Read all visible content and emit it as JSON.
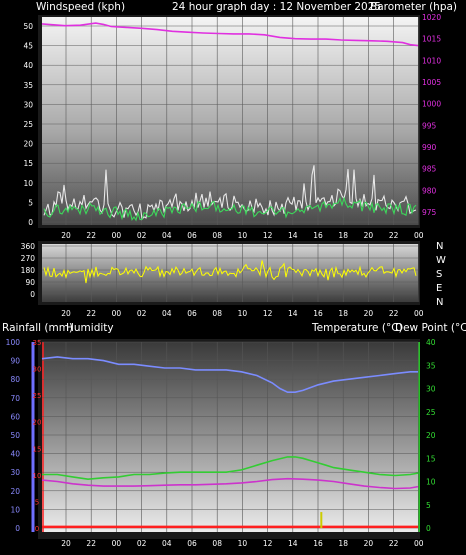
{
  "header": {
    "left": "Windspeed (kph)",
    "center": "24 hour graph day : 12 November 2025",
    "right": "Barometer (hpa)"
  },
  "middle_header": {
    "left": "Rainfall (mm)",
    "left2": "Humidity",
    "right": "Temperature (°C)",
    "right2": "Dew Point (°C)"
  },
  "colors": {
    "background": "#000000",
    "wind_speed": "#e8e8e8",
    "wind_gust": "#3cd85a",
    "barometer": "#e030e0",
    "direction": "#ffff00",
    "humidity": "#7b8cff",
    "temperature": "#33cc33",
    "dew_point": "#cc33cc",
    "rain": "#ff2020",
    "rain_rate": "#cccc00"
  },
  "chart_data": [
    {
      "type": "line",
      "name": "wind_barometer",
      "x_ticks": [
        "20",
        "22",
        "00",
        "02",
        "04",
        "06",
        "08",
        "10",
        "12",
        "14",
        "16",
        "18",
        "20",
        "22",
        "00"
      ],
      "xlim_hours": [
        18.5,
        43
      ],
      "left_axis": {
        "label": "Windspeed (kph)",
        "ylim": [
          0,
          50
        ],
        "ticks": [
          0,
          5,
          10,
          15,
          20,
          25,
          30,
          35,
          40,
          45,
          50
        ]
      },
      "right_axis": {
        "label": "Barometer (hpa)",
        "ylim": [
          972,
          1020
        ],
        "ticks": [
          975,
          980,
          985,
          990,
          995,
          1000,
          1005,
          1010,
          1015,
          1020
        ]
      },
      "series": [
        {
          "key": "barometer",
          "axis": "right",
          "x": [
            18.5,
            20,
            21,
            22,
            22.5,
            23,
            24,
            25,
            26,
            27,
            28,
            29,
            30,
            31,
            32,
            33,
            34,
            35,
            36,
            37,
            38,
            39,
            40,
            41,
            42,
            42.5,
            43
          ],
          "y": [
            1018.4,
            1018.0,
            1018.1,
            1018.6,
            1018.3,
            1017.8,
            1017.6,
            1017.4,
            1017.1,
            1016.7,
            1016.5,
            1016.3,
            1016.2,
            1016.1,
            1016.1,
            1015.9,
            1015.3,
            1015.0,
            1014.9,
            1014.9,
            1014.7,
            1014.6,
            1014.5,
            1014.4,
            1014.1,
            1013.6,
            1013.4
          ]
        }
      ]
    },
    {
      "type": "line",
      "name": "wind_direction",
      "x_ticks": [
        "20",
        "22",
        "00",
        "02",
        "04",
        "06",
        "08",
        "10",
        "12",
        "14",
        "16",
        "18",
        "20",
        "22",
        "00"
      ],
      "left_axis": {
        "ylim": [
          0,
          360
        ],
        "ticks": [
          0,
          90,
          180,
          270,
          360
        ]
      },
      "right_labels": [
        "N",
        "W",
        "S",
        "E",
        "N"
      ]
    },
    {
      "type": "line",
      "name": "temp_humidity_rain",
      "x_ticks": [
        "20",
        "22",
        "00",
        "02",
        "04",
        "06",
        "08",
        "10",
        "12",
        "14",
        "16",
        "18",
        "20",
        "22",
        "00"
      ],
      "xlim_hours": [
        18.5,
        43
      ],
      "humidity_axis": {
        "label": "Humidity",
        "ylim": [
          0,
          100
        ],
        "ticks": [
          0,
          10,
          20,
          30,
          40,
          50,
          60,
          70,
          80,
          90,
          100
        ]
      },
      "rain_axis": {
        "label": "Rainfall (mm)",
        "ylim": [
          0,
          35
        ],
        "ticks": [
          0,
          5,
          10,
          15,
          20,
          25,
          30,
          35
        ]
      },
      "temp_axis": {
        "label": "Temperature (°C)",
        "ylim": [
          0,
          40
        ],
        "ticks": [
          0,
          5,
          10,
          15,
          20,
          25,
          30,
          35,
          40
        ]
      },
      "series": [
        {
          "key": "humidity",
          "axis": "humidity",
          "x": [
            18.5,
            19.5,
            20.5,
            21.5,
            22.5,
            23.5,
            24.5,
            25.5,
            26.5,
            27.5,
            28.5,
            29.5,
            30.5,
            31.5,
            32.5,
            33,
            33.5,
            34,
            34.5,
            35,
            35.5,
            36.5,
            37.5,
            38.5,
            39.5,
            40.5,
            41.5,
            42.5,
            43
          ],
          "y": [
            91,
            92,
            91,
            91,
            90,
            88,
            88,
            87,
            86,
            86,
            85,
            85,
            85,
            84,
            82,
            80,
            78,
            75,
            73,
            73,
            74,
            77,
            79,
            80,
            81,
            82,
            83,
            84,
            84
          ]
        },
        {
          "key": "temperature",
          "axis": "temp",
          "x": [
            18.5,
            19.5,
            20.5,
            21.5,
            22.5,
            23.5,
            24.5,
            25.5,
            26.5,
            27.5,
            28.5,
            29.5,
            30.5,
            31.5,
            32.5,
            33.5,
            34.5,
            35,
            35.5,
            36,
            36.5,
            37,
            37.5,
            38.5,
            39.5,
            40.5,
            41.5,
            42.5,
            43
          ],
          "y": [
            11.5,
            11.5,
            11.0,
            10.5,
            10.8,
            11.0,
            11.5,
            11.5,
            11.8,
            12.0,
            12.0,
            12.0,
            12.0,
            12.5,
            13.5,
            14.5,
            15.3,
            15.3,
            15.0,
            14.5,
            14.0,
            13.5,
            13.0,
            12.5,
            12.0,
            11.5,
            11.3,
            11.5,
            11.8
          ]
        },
        {
          "key": "dew_point",
          "axis": "temp",
          "x": [
            18.5,
            19.5,
            20.5,
            21.5,
            22.5,
            23.5,
            24.5,
            25.5,
            26.5,
            27.5,
            28.5,
            29.5,
            30.5,
            31.5,
            32.5,
            33.5,
            34.5,
            35.5,
            36.5,
            37.5,
            38.5,
            39.5,
            40.5,
            41.5,
            42.5,
            43
          ],
          "y": [
            10.3,
            10.0,
            9.5,
            9.2,
            9.0,
            9.0,
            9.0,
            9.1,
            9.2,
            9.3,
            9.3,
            9.4,
            9.5,
            9.7,
            10.0,
            10.4,
            10.6,
            10.5,
            10.3,
            10.0,
            9.5,
            9.0,
            8.7,
            8.5,
            8.6,
            8.9
          ]
        },
        {
          "key": "rain",
          "axis": "rain",
          "x": [
            18.5,
            43
          ],
          "y": [
            0.2,
            0.2
          ]
        },
        {
          "key": "rain_rate",
          "axis": "rain",
          "type": "bar",
          "x": [
            36.7
          ],
          "y": [
            3.0
          ]
        }
      ]
    }
  ]
}
